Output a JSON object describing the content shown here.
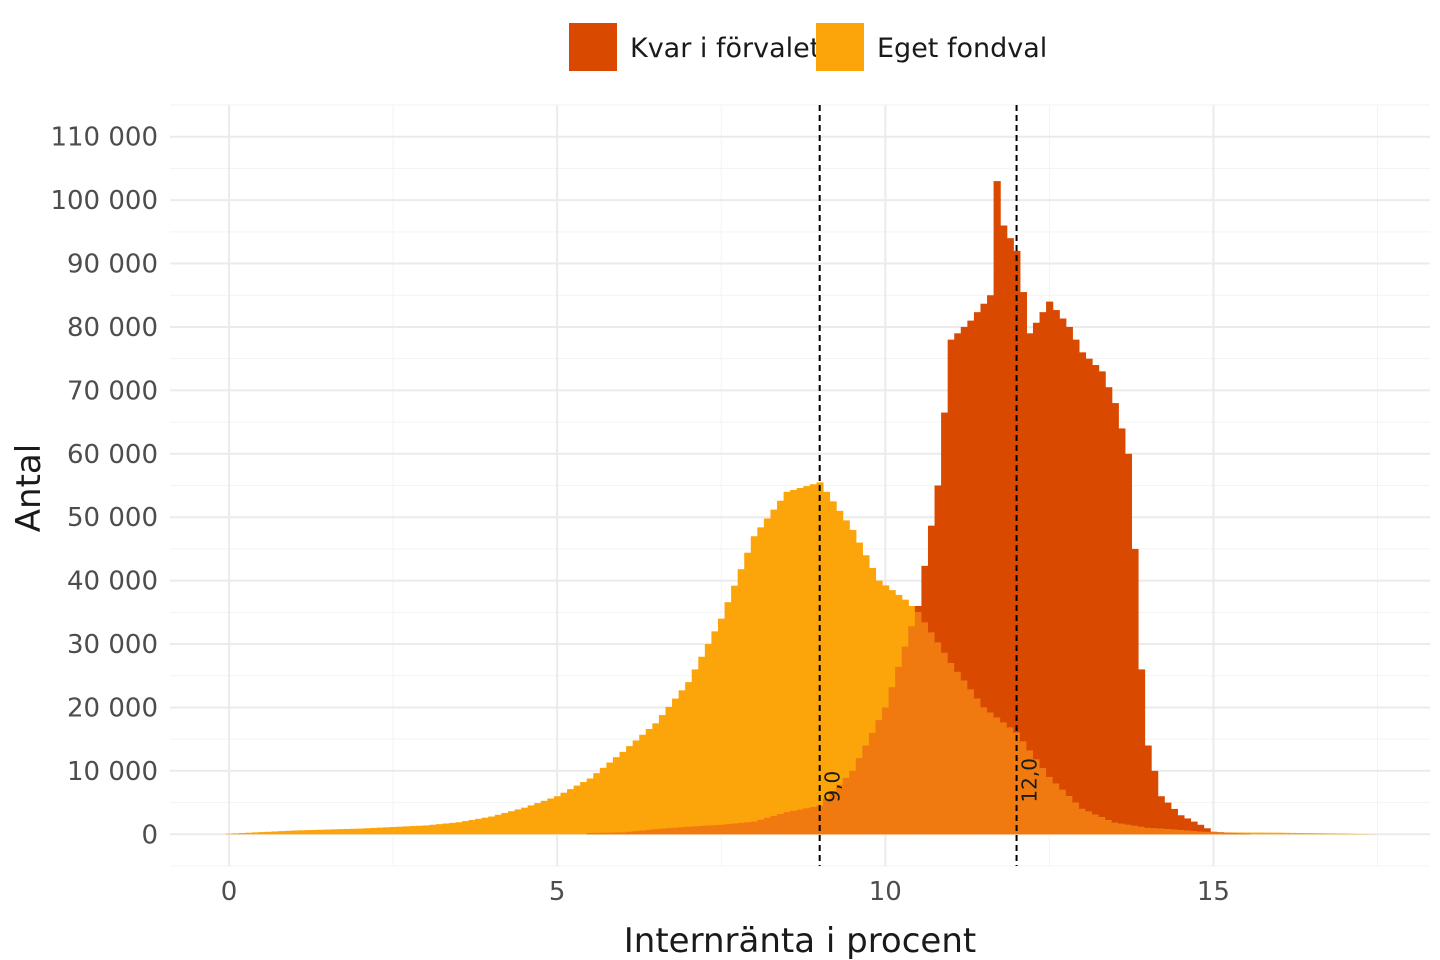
{
  "chart_data": {
    "type": "bar",
    "subtype": "overlapping histogram",
    "xlabel": "Internränta i procent",
    "ylabel": "Antal",
    "xlim": [
      -0.9,
      18.3
    ],
    "ylim": [
      -5000,
      115000
    ],
    "xticks": [
      0,
      5,
      10,
      15
    ],
    "xtick_labels": [
      "0",
      "5",
      "10",
      "15"
    ],
    "yticks": [
      0,
      10000,
      20000,
      30000,
      40000,
      50000,
      60000,
      70000,
      80000,
      90000,
      100000,
      110000
    ],
    "ytick_labels": [
      "0",
      "10 000",
      "20 000",
      "30 000",
      "40 000",
      "50 000",
      "60 000",
      "70 000",
      "80 000",
      "90 000",
      "100 000",
      "110 000"
    ],
    "grid": true,
    "legend_position": "top",
    "reference_lines": [
      {
        "x": 9.0,
        "label": "9,0",
        "style": "dashed"
      },
      {
        "x": 12.0,
        "label": "12,0",
        "style": "dashed"
      }
    ],
    "bin_width": 0.1,
    "series": [
      {
        "name": "Kvar i förvalet",
        "color": "#d94a00",
        "bins": [
          [
            5.5,
            200
          ],
          [
            6.0,
            300
          ],
          [
            6.5,
            800
          ],
          [
            7.0,
            1200
          ],
          [
            7.5,
            1500
          ],
          [
            8.0,
            2000
          ],
          [
            8.5,
            3500
          ],
          [
            9.0,
            4500
          ],
          [
            9.5,
            10000
          ],
          [
            10.0,
            20000
          ],
          [
            10.5,
            36000
          ],
          [
            10.8,
            55000
          ],
          [
            11.0,
            78000
          ],
          [
            11.3,
            81000
          ],
          [
            11.6,
            85000
          ],
          [
            11.7,
            103000
          ],
          [
            11.8,
            96000
          ],
          [
            12.0,
            92000
          ],
          [
            12.2,
            79000
          ],
          [
            12.5,
            84000
          ],
          [
            12.8,
            80000
          ],
          [
            13.0,
            76000
          ],
          [
            13.3,
            73000
          ],
          [
            13.5,
            68000
          ],
          [
            13.7,
            60000
          ],
          [
            13.8,
            45000
          ],
          [
            13.9,
            26000
          ],
          [
            14.0,
            14000
          ],
          [
            14.2,
            6000
          ],
          [
            14.5,
            3000
          ],
          [
            14.8,
            1500
          ],
          [
            15.0,
            400
          ],
          [
            15.5,
            100
          ]
        ]
      },
      {
        "name": "Eget fondval",
        "color": "#fca50a",
        "bins": [
          [
            0.0,
            100
          ],
          [
            1.0,
            600
          ],
          [
            2.0,
            900
          ],
          [
            3.0,
            1400
          ],
          [
            3.5,
            1900
          ],
          [
            4.0,
            2800
          ],
          [
            4.5,
            4200
          ],
          [
            5.0,
            6000
          ],
          [
            5.5,
            8800
          ],
          [
            6.0,
            13000
          ],
          [
            6.5,
            17500
          ],
          [
            7.0,
            24000
          ],
          [
            7.5,
            34000
          ],
          [
            8.0,
            47000
          ],
          [
            8.5,
            54000
          ],
          [
            9.0,
            55500
          ],
          [
            9.5,
            48000
          ],
          [
            9.9,
            40000
          ],
          [
            10.3,
            37000
          ],
          [
            10.5,
            35000
          ],
          [
            11.0,
            27000
          ],
          [
            11.5,
            20000
          ],
          [
            12.0,
            16000
          ],
          [
            12.5,
            9000
          ],
          [
            13.0,
            4000
          ],
          [
            13.5,
            1800
          ],
          [
            14.0,
            1000
          ],
          [
            15.0,
            300
          ],
          [
            16.0,
            250
          ],
          [
            17.0,
            100
          ],
          [
            17.5,
            0
          ]
        ]
      }
    ],
    "overlap_color": "#f07a10"
  }
}
